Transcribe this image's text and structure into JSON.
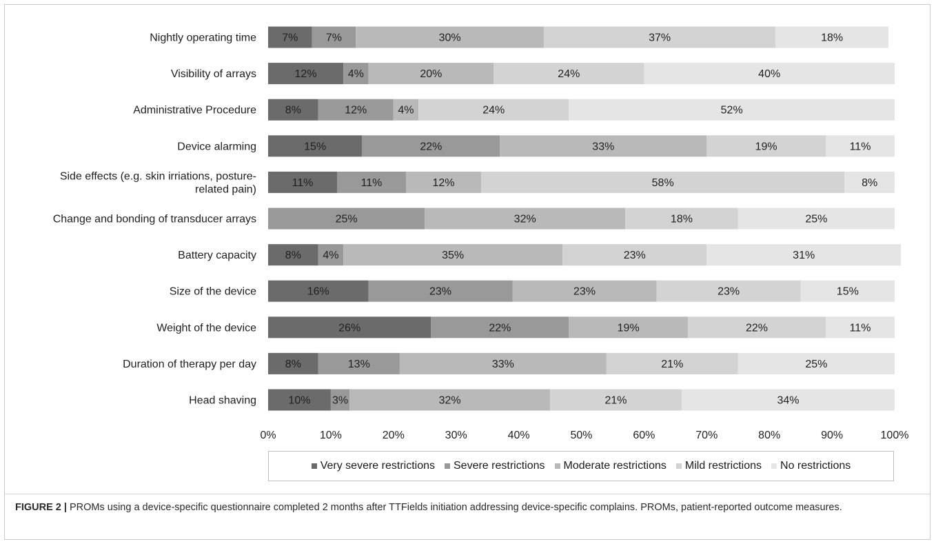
{
  "chart_data": {
    "type": "bar",
    "orientation": "horizontal",
    "stacked": true,
    "categories": [
      "Nightly operating time",
      "Visibility of arrays",
      "Administrative Procedure",
      "Device alarming",
      "Side effects (e.g. skin irriations, posture-related pain)",
      "Change and bonding of transducer arrays",
      "Battery capacity",
      "Size of the device",
      "Weight of the device",
      "Duration of therapy per day",
      "Head shaving"
    ],
    "category_lines": [
      [
        "Nightly operating time"
      ],
      [
        "Visibility of arrays"
      ],
      [
        "Administrative Procedure"
      ],
      [
        "Device alarming"
      ],
      [
        "Side effects (e.g. skin irriations, posture-",
        "related pain)"
      ],
      [
        "Change and bonding of transducer arrays"
      ],
      [
        "Battery capacity"
      ],
      [
        "Size of the device"
      ],
      [
        "Weight of the device"
      ],
      [
        "Duration of therapy per day"
      ],
      [
        "Head shaving"
      ]
    ],
    "series": [
      {
        "name": "Very severe restrictions",
        "color": "#6b6b6b",
        "values": [
          7,
          12,
          8,
          15,
          11,
          0,
          8,
          16,
          26,
          8,
          10
        ]
      },
      {
        "name": "Severe restrictions",
        "color": "#999999",
        "values": [
          7,
          4,
          12,
          22,
          11,
          25,
          4,
          23,
          22,
          13,
          3
        ]
      },
      {
        "name": "Moderate restrictions",
        "color": "#b9b9b9",
        "values": [
          30,
          20,
          4,
          33,
          12,
          32,
          35,
          23,
          19,
          33,
          32
        ]
      },
      {
        "name": "Mild restrictions",
        "color": "#d3d3d3",
        "values": [
          37,
          24,
          24,
          19,
          58,
          18,
          23,
          23,
          22,
          21,
          21
        ]
      },
      {
        "name": "No restrictions",
        "color": "#e5e5e5",
        "values": [
          18,
          40,
          52,
          11,
          8,
          25,
          31,
          15,
          11,
          25,
          34
        ]
      }
    ],
    "x_ticks": [
      "0%",
      "10%",
      "20%",
      "30%",
      "40%",
      "50%",
      "60%",
      "70%",
      "80%",
      "90%",
      "100%"
    ],
    "xlim": [
      0,
      100
    ],
    "value_suffix": "%",
    "grid": false,
    "legend_position": "bottom"
  },
  "caption": {
    "label": "FIGURE 2 |",
    "text": " PROMs using a device-specific questionnaire completed 2 months after TTFields initiation addressing device-specific complains. PROMs, patient-reported outcome measures."
  }
}
